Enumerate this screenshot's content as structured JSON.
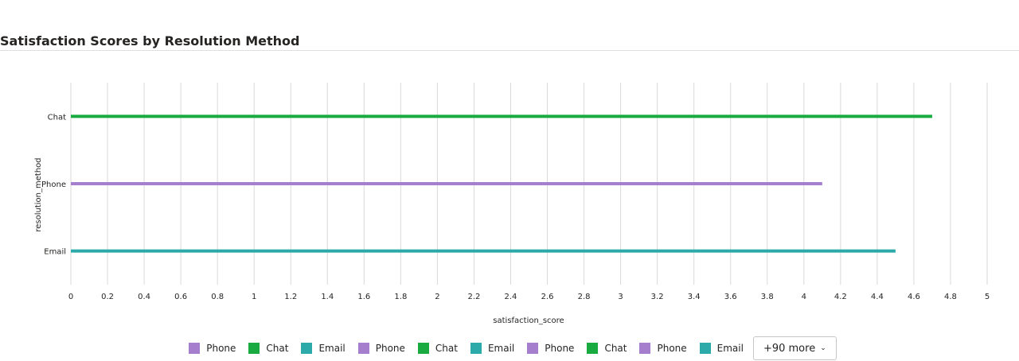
{
  "chart_data": {
    "type": "bar",
    "orientation": "horizontal",
    "title": "Satisfaction Scores by Resolution Method",
    "xlabel": "satisfaction_score",
    "ylabel": "resolution_method",
    "categories": [
      "Chat",
      "Phone",
      "Email"
    ],
    "values": [
      4.7,
      4.1,
      4.5
    ],
    "bar_colors": [
      "#1aab40",
      "#a57fcd",
      "#2ca9a9"
    ],
    "xlim": [
      0,
      5
    ],
    "x_ticks": [
      "0",
      "0.2",
      "0.4",
      "0.6",
      "0.8",
      "1",
      "1.2",
      "1.4",
      "1.6",
      "1.8",
      "2",
      "2.2",
      "2.4",
      "2.6",
      "2.8",
      "3",
      "3.2",
      "3.4",
      "3.6",
      "3.8",
      "4",
      "4.2",
      "4.4",
      "4.6",
      "4.8",
      "5"
    ],
    "grid": true,
    "legend_position": "bottom-center"
  },
  "legend": {
    "items": [
      {
        "label": "Phone",
        "color": "#a57fcd"
      },
      {
        "label": "Chat",
        "color": "#1aab40"
      },
      {
        "label": "Email",
        "color": "#2ca9a9"
      },
      {
        "label": "Phone",
        "color": "#a57fcd"
      },
      {
        "label": "Chat",
        "color": "#1aab40"
      },
      {
        "label": "Email",
        "color": "#2ca9a9"
      },
      {
        "label": "Phone",
        "color": "#a57fcd"
      },
      {
        "label": "Chat",
        "color": "#1aab40"
      },
      {
        "label": "Phone",
        "color": "#a57fcd"
      },
      {
        "label": "Email",
        "color": "#2ca9a9"
      }
    ],
    "more_label": "+90 more",
    "more_icon": "chevron-down-icon"
  }
}
